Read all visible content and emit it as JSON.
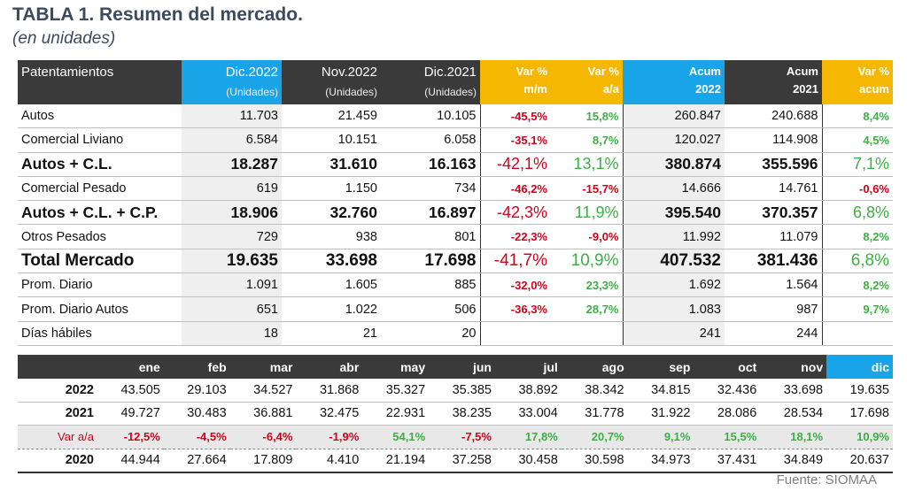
{
  "header": {
    "title": "TABLA 1. Resumen del mercado.",
    "subtitle": "(en unidades)"
  },
  "table": {
    "columns": [
      {
        "label": "Patentamientos"
      },
      {
        "label": "Dic.2022",
        "sub": "(Unidades)"
      },
      {
        "label": "Nov.2022",
        "sub": "(Unidades)"
      },
      {
        "label": "Dic.2021",
        "sub": "(Unidades)"
      },
      {
        "label": "Var %",
        "sub": "m/m"
      },
      {
        "label": "Var %",
        "sub": "a/a"
      },
      {
        "label": "Acum",
        "sub": "2022"
      },
      {
        "label": "Acum",
        "sub": "2021"
      },
      {
        "label": "Var %",
        "sub": "acum"
      }
    ],
    "rows": [
      [
        "Autos",
        "11.703",
        "21.459",
        "10.105",
        "-45,5%",
        "15,8%",
        "260.847",
        "240.688",
        "8,4%"
      ],
      [
        "Comercial Liviano",
        "6.584",
        "10.151",
        "6.058",
        "-35,1%",
        "8,7%",
        "120.027",
        "114.908",
        "4,5%"
      ],
      [
        "Autos + C.L.",
        "18.287",
        "31.610",
        "16.163",
        "-42,1%",
        "13,1%",
        "380.874",
        "355.596",
        "7,1%"
      ],
      [
        "Comercial Pesado",
        "619",
        "1.150",
        "734",
        "-46,2%",
        "-15,7%",
        "14.666",
        "14.761",
        "-0,6%"
      ],
      [
        "Autos + C.L. + C.P.",
        "18.906",
        "32.760",
        "16.897",
        "-42,3%",
        "11,9%",
        "395.540",
        "370.357",
        "6,8%"
      ],
      [
        "Otros Pesados",
        "729",
        "938",
        "801",
        "-22,3%",
        "-9,0%",
        "11.992",
        "11.079",
        "8,2%"
      ],
      [
        "Total Mercado",
        "19.635",
        "33.698",
        "17.698",
        "-41,7%",
        "10,9%",
        "407.532",
        "381.436",
        "6,8%"
      ],
      [
        "Prom. Diario",
        "1.091",
        "1.605",
        "885",
        "-32,0%",
        "23,3%",
        "1.692",
        "1.564",
        "8,2%"
      ],
      [
        "Prom. Diario Autos",
        "651",
        "1.022",
        "506",
        "-36,3%",
        "28,7%",
        "1.083",
        "987",
        "9,7%"
      ],
      [
        "Días hábiles",
        "18",
        "21",
        "20",
        null,
        null,
        "241",
        "244",
        null
      ]
    ]
  },
  "monthly": {
    "months": [
      "ene",
      "feb",
      "mar",
      "abr",
      "may",
      "jun",
      "jul",
      "ago",
      "sep",
      "oct",
      "nov",
      "dic"
    ],
    "rows": [
      [
        "2022",
        "43.505",
        "29.103",
        "34.527",
        "31.868",
        "35.327",
        "35.385",
        "38.892",
        "38.342",
        "34.815",
        "32.436",
        "33.698",
        "19.635"
      ],
      [
        "2021",
        "49.727",
        "30.483",
        "36.881",
        "32.475",
        "22.931",
        "38.235",
        "33.004",
        "31.778",
        "31.922",
        "28.086",
        "28.534",
        "17.698"
      ],
      [
        "Var a/a",
        "-12,5%",
        "-4,5%",
        "-6,4%",
        "-1,9%",
        "54,1%",
        "-7,5%",
        "17,8%",
        "20,7%",
        "9,1%",
        "15,5%",
        "18,1%",
        "10,9%"
      ],
      [
        "2020",
        "44.944",
        "27.664",
        "17.809",
        "4.410",
        "21.194",
        "37.258",
        "30.458",
        "30.598",
        "34.973",
        "37.431",
        "34.849",
        "20.637"
      ]
    ]
  },
  "source": "Fuente: SIOMAA"
}
